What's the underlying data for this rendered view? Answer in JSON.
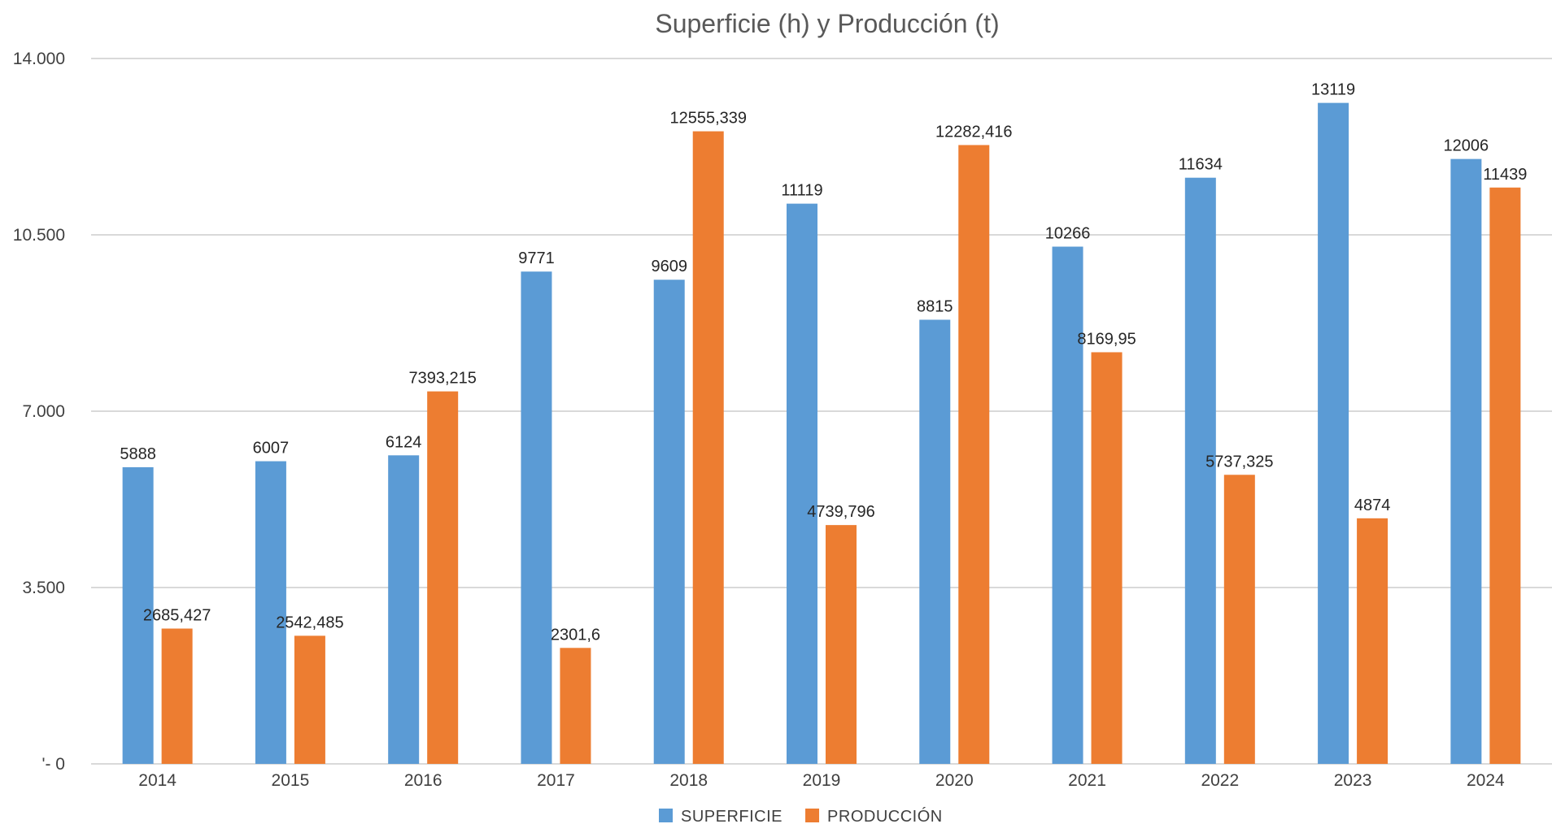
{
  "chart_data": {
    "type": "bar",
    "title": "Superficie (h) y Producción (t)",
    "xlabel": "",
    "ylabel": "",
    "ylim": [
      0,
      14000
    ],
    "y_ticks": [
      0,
      3500,
      7000,
      10500,
      14000
    ],
    "y_tick_labels": [
      "'- 0",
      "3.500",
      "7.000",
      "10.500",
      "14.000"
    ],
    "grid": true,
    "legend_position": "bottom",
    "categories": [
      "2014",
      "2015",
      "2016",
      "2017",
      "2018",
      "2019",
      "2020",
      "2021",
      "2022",
      "2023",
      "2024"
    ],
    "series": [
      {
        "name": "SUPERFICIE",
        "color": "#5b9bd5",
        "values": [
          5888,
          6007,
          6124,
          9771,
          9609,
          11119,
          8815,
          10266,
          11634,
          13119,
          12006
        ],
        "labels": [
          "5888",
          "6007",
          "6124",
          "9771",
          "9609",
          "11119",
          "8815",
          "10266",
          "11634",
          "13119",
          "12006"
        ]
      },
      {
        "name": "PRODUCCIÓN",
        "color": "#ed7d31",
        "values": [
          2685.427,
          2542.485,
          7393.215,
          2301.6,
          12555.339,
          4739.796,
          12282.416,
          8169.95,
          5737.325,
          4874,
          11439
        ],
        "labels": [
          "2685,427",
          "2542,485",
          "7393,215",
          "2301,6",
          "12555,339",
          "4739,796",
          "12282,416",
          "8169,95",
          "5737,325",
          "4874",
          "11439"
        ]
      }
    ]
  }
}
